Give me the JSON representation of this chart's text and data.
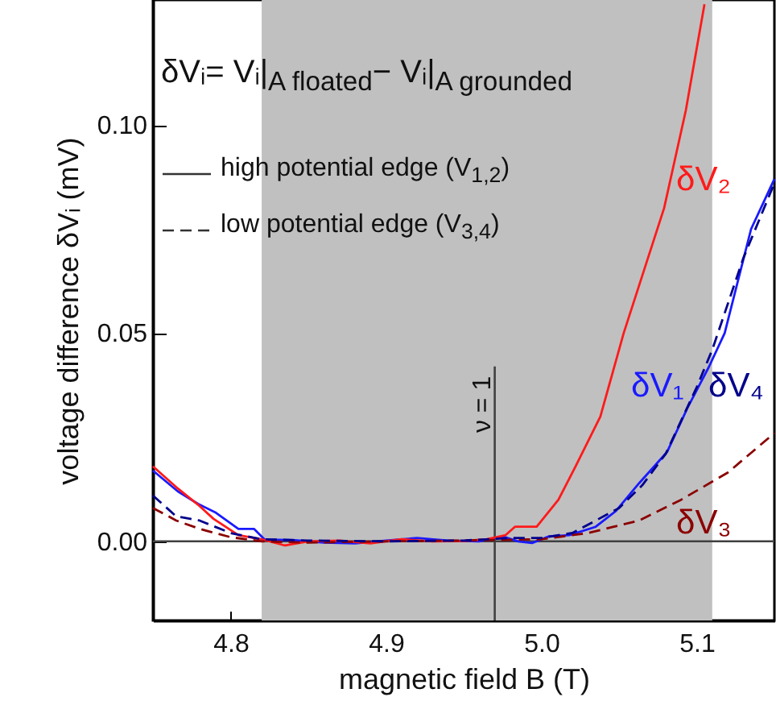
{
  "chart_data": {
    "type": "line",
    "xlabel": "magnetic field B (T)",
    "ylabel": "voltage difference δVᵢ (mV)",
    "xlim": [
      4.75,
      5.15
    ],
    "xticks": [
      4.8,
      4.9,
      {
        "value": 5,
        "label": "5.0"
      },
      5.1
    ],
    "ylim": [
      -0.019,
      0.13
    ],
    "yticks": [
      {
        "value": 0,
        "label": "0.00"
      },
      {
        "value": 0.05,
        "label": "0.05"
      },
      {
        "value": 0.1,
        "label": "0.10"
      }
    ],
    "annotations": [
      "δVᵢ= Vᵢ|$_{A floated}$− Vᵢ|$_{A grounded}$",
      "high potential edge (V$_{1,2}$)",
      "low potential edge (V$_{3,4}$)",
      {
        "text": "ν = 1",
        "x": 4.97,
        "y": 0.042
      }
    ],
    "bands": [
      {
        "axis": "x",
        "from": 4.82,
        "to": 5.11,
        "color": "#c0c0c0"
      }
    ],
    "ref_lines": [
      {
        "axis": "x",
        "value": 4.97,
        "color": "#404040"
      },
      {
        "axis": "y",
        "value": 0,
        "color": "#404040"
      }
    ],
    "series": [
      {
        "name": "δV₁",
        "color": "#1a1aff",
        "line_style": "solid",
        "x": [
          4.75,
          4.766,
          4.779,
          4.79,
          4.805,
          4.815,
          4.822,
          4.84,
          4.86,
          4.88,
          4.9,
          4.92,
          4.94,
          4.96,
          4.975,
          4.985,
          4.994,
          5.005,
          5.018,
          5.035,
          5.048,
          5.063,
          5.081,
          5.094,
          5.108,
          5.118,
          5.135,
          5.15
        ],
        "values": [
          0.017,
          0.012,
          0.009,
          0.007,
          0.003,
          0.003,
          0.0004,
          0.0003,
          -0.0003,
          -0.0005,
          0.0002,
          0.0008,
          0.0002,
          0,
          0.0012,
          0,
          -0.0004,
          0.0012,
          0.0015,
          0.0035,
          0.0073,
          0.014,
          0.0215,
          0.032,
          0.042,
          0.05,
          0.075,
          0.087
        ]
      },
      {
        "name": "δV₂",
        "color": "#ff1a1a",
        "line_style": "solid",
        "x": [
          4.75,
          4.766,
          4.779,
          4.789,
          4.805,
          4.821,
          4.835,
          4.85,
          4.87,
          4.89,
          4.91,
          4.93,
          4.95,
          4.965,
          4.977,
          4.983,
          4.997,
          5.011,
          5.022,
          5.038,
          5.053,
          5.066,
          5.079,
          5.093,
          5.105
        ],
        "values": [
          0.018,
          0.0127,
          0.0088,
          0.0054,
          0.0015,
          0.0004,
          -0.001,
          0,
          0.0002,
          -0.0005,
          0.0005,
          0,
          0.0001,
          0.0005,
          0.0015,
          0.0035,
          0.0035,
          0.01,
          0.018,
          0.03,
          0.05,
          0.065,
          0.08,
          0.1035,
          0.129
        ]
      },
      {
        "name": "δV₃",
        "color": "#8b0000",
        "line_style": "dashed",
        "x": [
          4.75,
          4.765,
          4.78,
          4.8,
          4.82,
          4.85,
          4.9,
          4.95,
          5.0,
          5.03,
          5.063,
          5.09,
          5.12,
          5.15
        ],
        "values": [
          0.008,
          0.005,
          0.003,
          0.001,
          0,
          -0.0003,
          0,
          0.0002,
          0.0005,
          0.002,
          0.005,
          0.01,
          0.0165,
          0.026
        ]
      },
      {
        "name": "δV₄",
        "color": "#00008b",
        "line_style": "dashed",
        "x": [
          4.75,
          4.765,
          4.78,
          4.8,
          4.82,
          4.85,
          4.9,
          4.95,
          4.98,
          5.0,
          5.02,
          5.05,
          5.065,
          5.08,
          5.1,
          5.11,
          5.13,
          5.15
        ],
        "values": [
          0.011,
          0.006,
          0.005,
          0.002,
          0.0005,
          0.0002,
          0,
          0.0002,
          0.0008,
          0.0008,
          0.002,
          0.008,
          0.0135,
          0.021,
          0.037,
          0.046,
          0.068,
          0.086
        ]
      }
    ]
  }
}
